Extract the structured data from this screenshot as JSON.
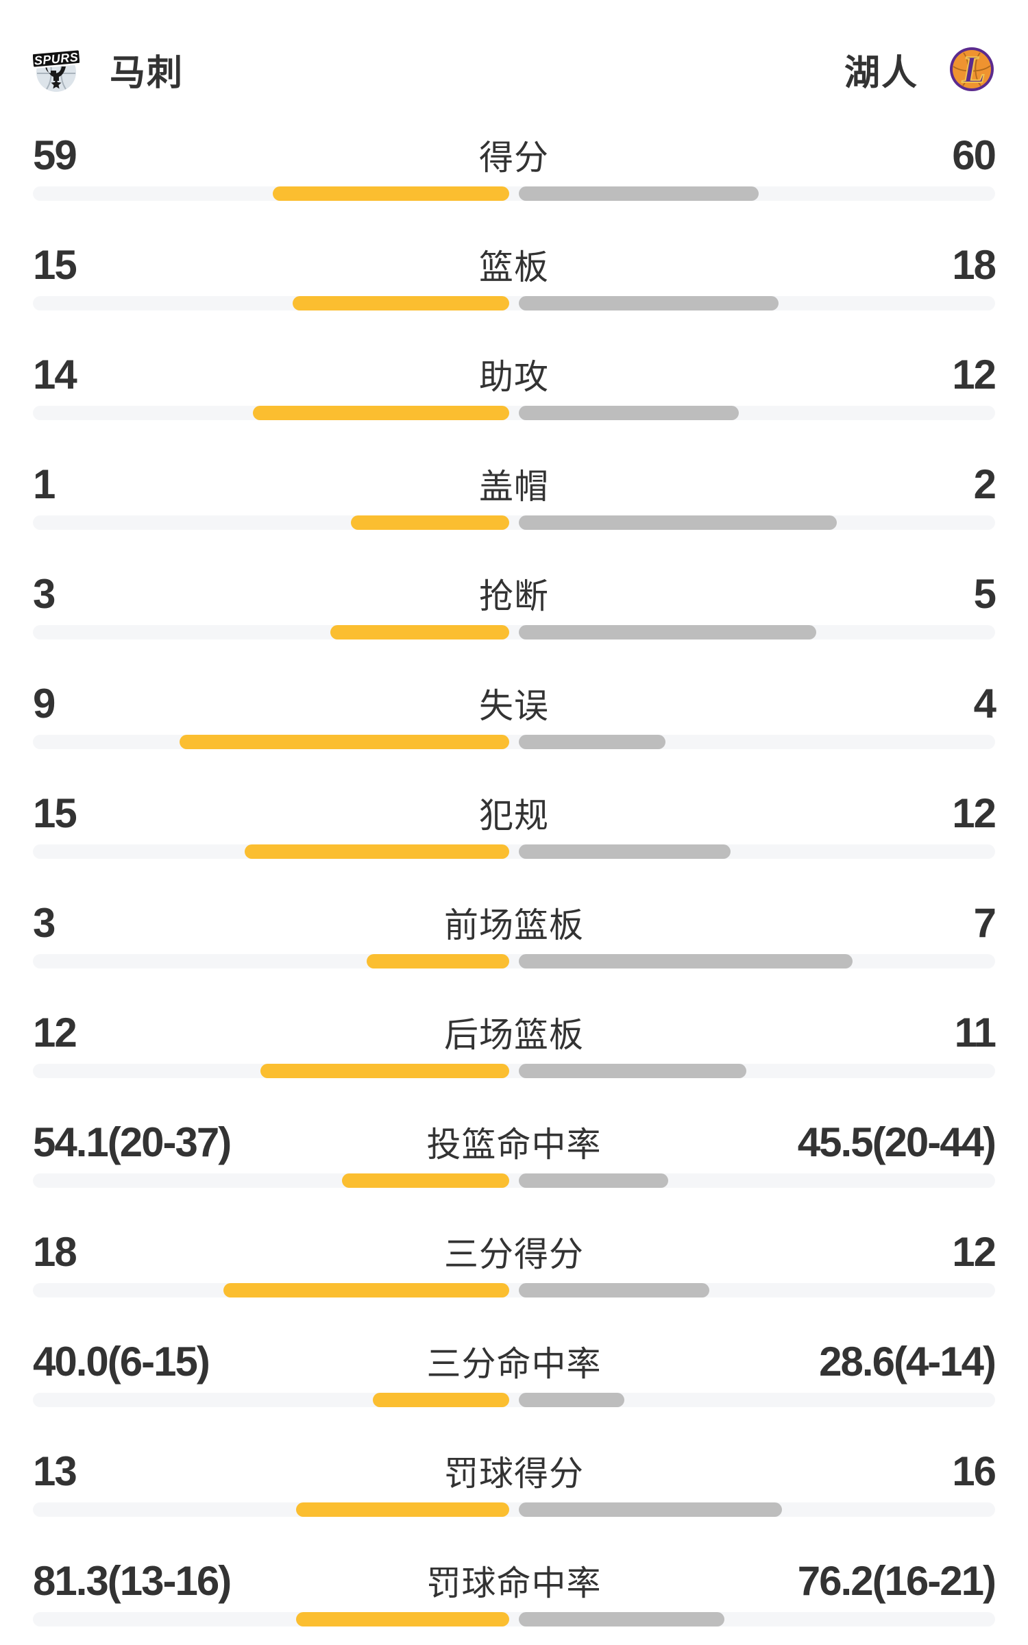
{
  "header": {
    "left_team": {
      "name": "马刺",
      "logo_text": "SPURS"
    },
    "right_team": {
      "name": "湖人",
      "logo_letter": "L"
    }
  },
  "colors": {
    "left_bar": "#fbbe30",
    "right_bar": "#bdbdbd",
    "track": "#f5f6f8",
    "text": "#333333",
    "spurs_silver": "#dde4ea",
    "lakers_purple": "#5b2b8e",
    "lakers_orange": "#ef9330",
    "lakers_gold": "#f0c24f"
  },
  "chart_data": {
    "type": "bar",
    "subtype": "horizontal-team-comparison",
    "legend_position": "none",
    "teams": [
      "马刺",
      "湖人"
    ],
    "rows": [
      {
        "label": "得分",
        "left": "59",
        "right": "60",
        "left_value": 59,
        "right_value": 60,
        "bar_left_pct": 49.6,
        "bar_right_pct": 50.4
      },
      {
        "label": "篮板",
        "left": "15",
        "right": "18",
        "left_value": 15,
        "right_value": 18,
        "bar_left_pct": 45.5,
        "bar_right_pct": 54.5
      },
      {
        "label": "助攻",
        "left": "14",
        "right": "12",
        "left_value": 14,
        "right_value": 12,
        "bar_left_pct": 53.8,
        "bar_right_pct": 46.2
      },
      {
        "label": "盖帽",
        "left": "1",
        "right": "2",
        "left_value": 1,
        "right_value": 2,
        "bar_left_pct": 33.3,
        "bar_right_pct": 66.7
      },
      {
        "label": "抢断",
        "left": "3",
        "right": "5",
        "left_value": 3,
        "right_value": 5,
        "bar_left_pct": 37.5,
        "bar_right_pct": 62.5
      },
      {
        "label": "失误",
        "left": "9",
        "right": "4",
        "left_value": 9,
        "right_value": 4,
        "bar_left_pct": 69.2,
        "bar_right_pct": 30.8
      },
      {
        "label": "犯规",
        "left": "15",
        "right": "12",
        "left_value": 15,
        "right_value": 12,
        "bar_left_pct": 55.6,
        "bar_right_pct": 44.4
      },
      {
        "label": "前场篮板",
        "left": "3",
        "right": "7",
        "left_value": 3,
        "right_value": 7,
        "bar_left_pct": 30.0,
        "bar_right_pct": 70.0
      },
      {
        "label": "后场篮板",
        "left": "12",
        "right": "11",
        "left_value": 12,
        "right_value": 11,
        "bar_left_pct": 52.2,
        "bar_right_pct": 47.8
      },
      {
        "label": "投篮命中率",
        "left": "54.1(20-37)",
        "right": "45.5(20-44)",
        "left_value": 54.1,
        "right_value": 45.5,
        "bar_left_pct": 35.1,
        "bar_right_pct": 31.3
      },
      {
        "label": "三分得分",
        "left": "18",
        "right": "12",
        "left_value": 18,
        "right_value": 12,
        "bar_left_pct": 60.0,
        "bar_right_pct": 40.0
      },
      {
        "label": "三分命中率",
        "left": "40.0(6-15)",
        "right": "28.6(4-14)",
        "left_value": 40.0,
        "right_value": 28.6,
        "bar_left_pct": 28.6,
        "bar_right_pct": 22.2
      },
      {
        "label": "罚球得分",
        "left": "13",
        "right": "16",
        "left_value": 13,
        "right_value": 16,
        "bar_left_pct": 44.8,
        "bar_right_pct": 55.2
      },
      {
        "label": "罚球命中率",
        "left": "81.3(13-16)",
        "right": "76.2(16-21)",
        "left_value": 81.3,
        "right_value": 76.2,
        "bar_left_pct": 44.8,
        "bar_right_pct": 43.2
      }
    ]
  }
}
